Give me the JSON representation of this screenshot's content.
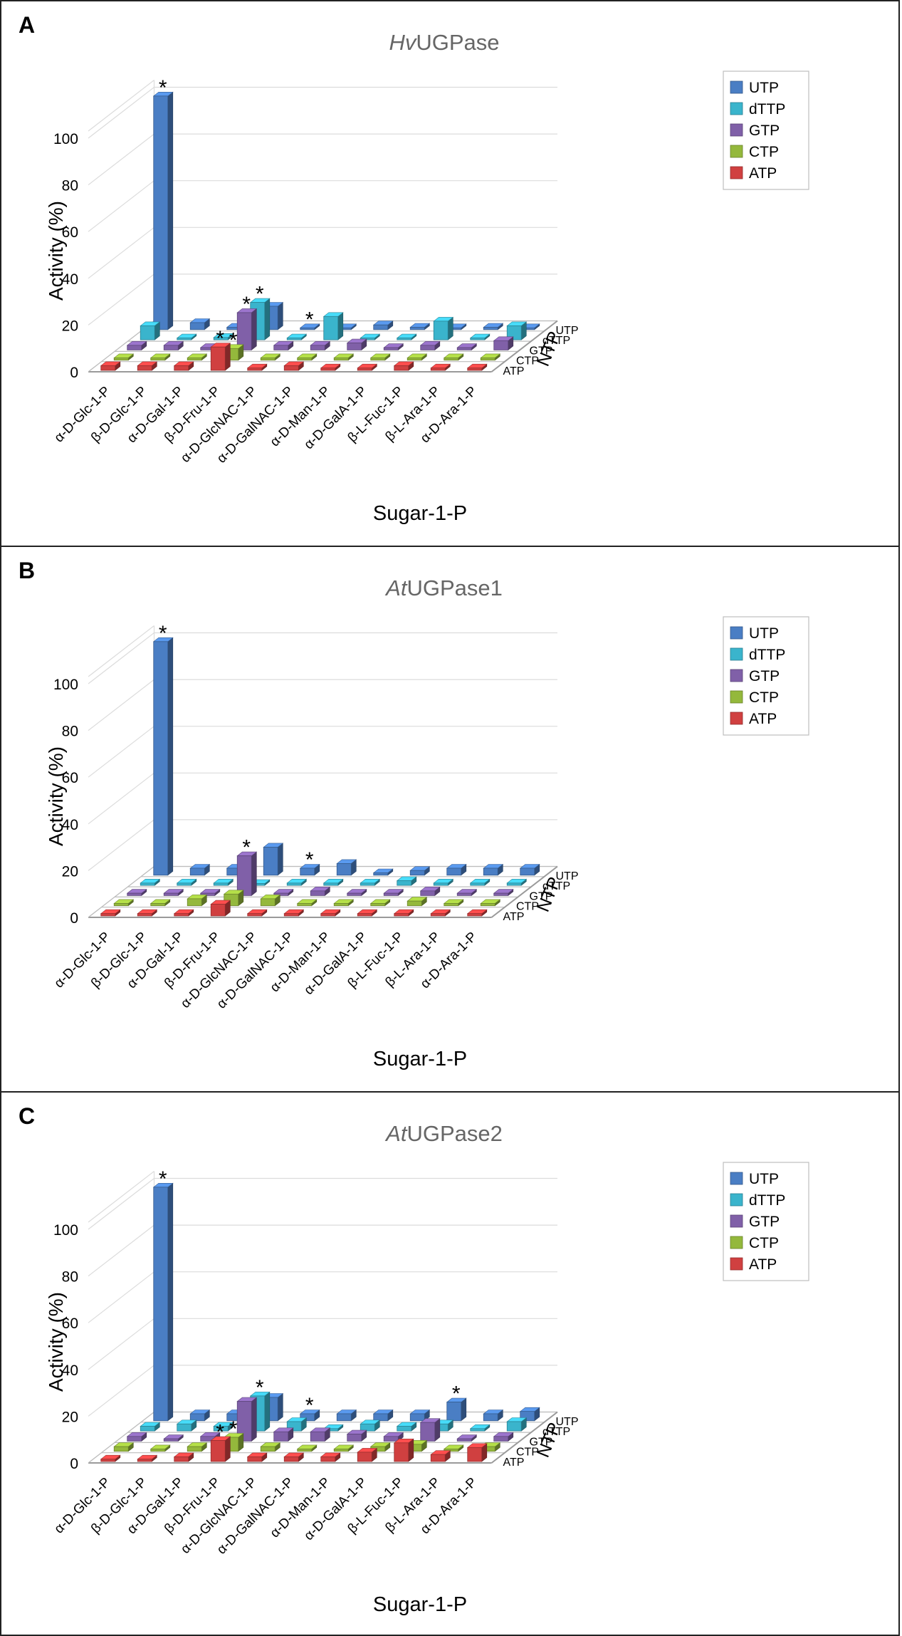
{
  "figure": {
    "panels": [
      {
        "letter": "A"
      },
      {
        "letter": "B"
      },
      {
        "letter": "C"
      }
    ]
  },
  "chart_data": [
    {
      "type": "bar",
      "title_italic": "Hv",
      "title_rest": "UGPase",
      "xlabel": "Sugar-1-P",
      "ylabel": "Activity (%)",
      "zlabel": "NTP",
      "ylim": [
        0,
        100
      ],
      "yticks": [
        "0",
        "20",
        "40",
        "60",
        "80",
        "100"
      ],
      "categories": [
        "α-D-Glc-1-P",
        "β-D-Glc-1-P",
        "α-D-Gal-1-P",
        "β-D-Fru-1-P",
        "α-D-GlcNAC-1-P",
        "α-D-GalNAC-1-P",
        "α-D-Man-1-P",
        "α-D-GalA-1-P",
        "β-L-Fuc-1-P",
        "β-L-Ara-1-P",
        "α-D-Ara-1-P"
      ],
      "legend": [
        "UTP",
        "dTTP",
        "GTP",
        "CTP",
        "ATP"
      ],
      "depth_labels": [
        "UTP",
        "dTTP",
        "GTP",
        "CTP",
        "ATP"
      ],
      "series": [
        {
          "name": "UTP",
          "color": "#4a7ec4",
          "values": [
            100,
            3,
            1,
            10,
            0,
            0,
            2,
            1,
            0,
            1,
            0
          ],
          "stars": [
            0,
            4
          ]
        },
        {
          "name": "dTTP",
          "color": "#3ab4cc",
          "values": [
            6,
            0,
            1,
            16,
            0,
            10,
            0,
            0,
            8,
            0,
            6
          ],
          "stars": [
            3
          ]
        },
        {
          "name": "GTP",
          "color": "#8060a8",
          "values": [
            2,
            2,
            1,
            16,
            2,
            2,
            3,
            1,
            2,
            1,
            4
          ],
          "stars": [
            3
          ]
        },
        {
          "name": "CTP",
          "color": "#94b83c",
          "values": [
            1,
            1,
            1,
            5,
            1,
            1,
            1,
            1,
            1,
            1,
            1
          ],
          "stars": [
            3
          ]
        },
        {
          "name": "ATP",
          "color": "#d04040",
          "values": [
            2,
            2,
            2,
            10,
            1,
            2,
            1,
            1,
            2,
            1,
            1
          ],
          "stars": [
            3
          ]
        }
      ]
    },
    {
      "type": "bar",
      "title_italic": "At",
      "title_rest": "UGPase1",
      "xlabel": "Sugar-1-P",
      "ylabel": "Activity (%)",
      "zlabel": "NTP",
      "ylim": [
        0,
        100
      ],
      "yticks": [
        "0",
        "20",
        "40",
        "60",
        "80",
        "100"
      ],
      "categories": [
        "α-D-Glc-1-P",
        "β-D-Glc-1-P",
        "α-D-Gal-1-P",
        "β-D-Fru-1-P",
        "α-D-GlcNAC-1-P",
        "α-D-GalNAC-1-P",
        "α-D-Man-1-P",
        "α-D-GalA-1-P",
        "β-L-Fuc-1-P",
        "β-L-Ara-1-P",
        "α-D-Ara-1-P"
      ],
      "legend": [
        "UTP",
        "dTTP",
        "GTP",
        "CTP",
        "ATP"
      ],
      "depth_labels": [
        "UTP",
        "dTTP",
        "GTP",
        "CTP",
        "ATP"
      ],
      "series": [
        {
          "name": "UTP",
          "color": "#4a7ec4",
          "values": [
            100,
            3,
            3,
            12,
            3,
            5,
            1,
            2,
            3,
            3,
            3
          ],
          "stars": [
            0,
            4
          ]
        },
        {
          "name": "dTTP",
          "color": "#3ab4cc",
          "values": [
            1,
            1,
            1,
            0,
            1,
            1,
            1,
            2,
            1,
            1,
            1
          ],
          "stars": []
        },
        {
          "name": "GTP",
          "color": "#8060a8",
          "values": [
            1,
            1,
            1,
            17,
            1,
            2,
            1,
            1,
            2,
            1,
            1
          ],
          "stars": [
            3
          ]
        },
        {
          "name": "CTP",
          "color": "#94b83c",
          "values": [
            1,
            1,
            3,
            5,
            3,
            1,
            1,
            1,
            2,
            1,
            1
          ],
          "stars": []
        },
        {
          "name": "ATP",
          "color": "#d04040",
          "values": [
            1,
            1,
            1,
            5,
            1,
            1,
            1,
            1,
            1,
            1,
            1
          ],
          "stars": []
        }
      ]
    },
    {
      "type": "bar",
      "title_italic": "At",
      "title_rest": "UGPase2",
      "xlabel": "Sugar-1-P",
      "ylabel": "Activity (%)",
      "zlabel": "NTP",
      "ylim": [
        0,
        100
      ],
      "yticks": [
        "0",
        "20",
        "40",
        "60",
        "80",
        "100"
      ],
      "categories": [
        "α-D-Glc-1-P",
        "β-D-Glc-1-P",
        "α-D-Gal-1-P",
        "β-D-Fru-1-P",
        "α-D-GlcNAC-1-P",
        "α-D-GalNAC-1-P",
        "α-D-Man-1-P",
        "α-D-GalA-1-P",
        "β-L-Fuc-1-P",
        "β-L-Ara-1-P",
        "α-D-Ara-1-P"
      ],
      "legend": [
        "UTP",
        "dTTP",
        "GTP",
        "CTP",
        "ATP"
      ],
      "depth_labels": [
        "UTP",
        "dTTP",
        "GTP",
        "CTP",
        "ATP"
      ],
      "series": [
        {
          "name": "UTP",
          "color": "#4a7ec4",
          "values": [
            100,
            3,
            3,
            10,
            3,
            3,
            3,
            3,
            8,
            3,
            4
          ],
          "stars": [
            0,
            4,
            8
          ]
        },
        {
          "name": "dTTP",
          "color": "#3ab4cc",
          "values": [
            2,
            3,
            2,
            15,
            4,
            1,
            3,
            2,
            3,
            1,
            4
          ],
          "stars": [
            3
          ]
        },
        {
          "name": "GTP",
          "color": "#8060a8",
          "values": [
            2,
            1,
            2,
            17,
            4,
            4,
            3,
            2,
            8,
            1,
            2
          ],
          "stars": []
        },
        {
          "name": "CTP",
          "color": "#94b83c",
          "values": [
            2,
            1,
            2,
            6,
            2,
            1,
            1,
            2,
            3,
            1,
            2
          ],
          "stars": [
            3
          ]
        },
        {
          "name": "ATP",
          "color": "#d04040",
          "values": [
            1,
            1,
            2,
            9,
            2,
            2,
            2,
            4,
            8,
            3,
            6
          ],
          "stars": [
            3
          ]
        }
      ]
    }
  ]
}
